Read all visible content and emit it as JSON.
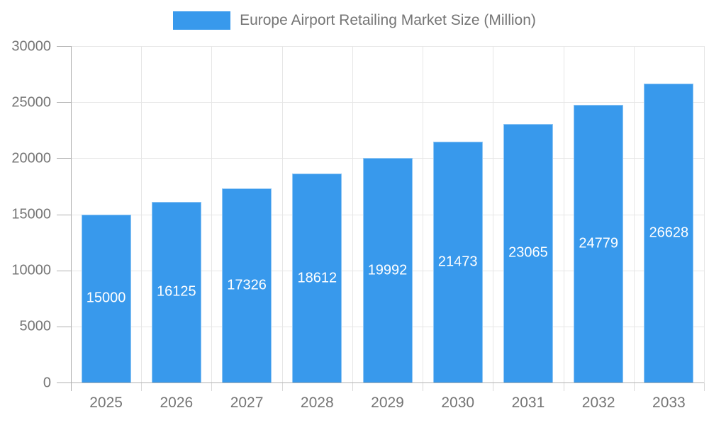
{
  "chart_data": {
    "type": "bar",
    "title": "Europe Airport Retailing Market Size (Million)",
    "categories": [
      "2025",
      "2026",
      "2027",
      "2028",
      "2029",
      "2030",
      "2031",
      "2032",
      "2033"
    ],
    "values": [
      15000,
      16125,
      17326,
      18612,
      19992,
      21473,
      23065,
      24779,
      26628
    ],
    "yticks": [
      0,
      5000,
      10000,
      15000,
      20000,
      25000,
      30000
    ],
    "ylim": [
      0,
      30000
    ],
    "xlabel": "",
    "ylabel": "",
    "grid": true,
    "legend_position": "top",
    "colors": {
      "bar": "#3899ec",
      "bar_value_text": "#ffffff",
      "axis_text": "#757575",
      "legend_text": "#757575",
      "axis_line": "#b0b0b0",
      "gridline": "#e6e6e6",
      "category_tick": "#d9d9d9",
      "background": "#ffffff"
    }
  }
}
